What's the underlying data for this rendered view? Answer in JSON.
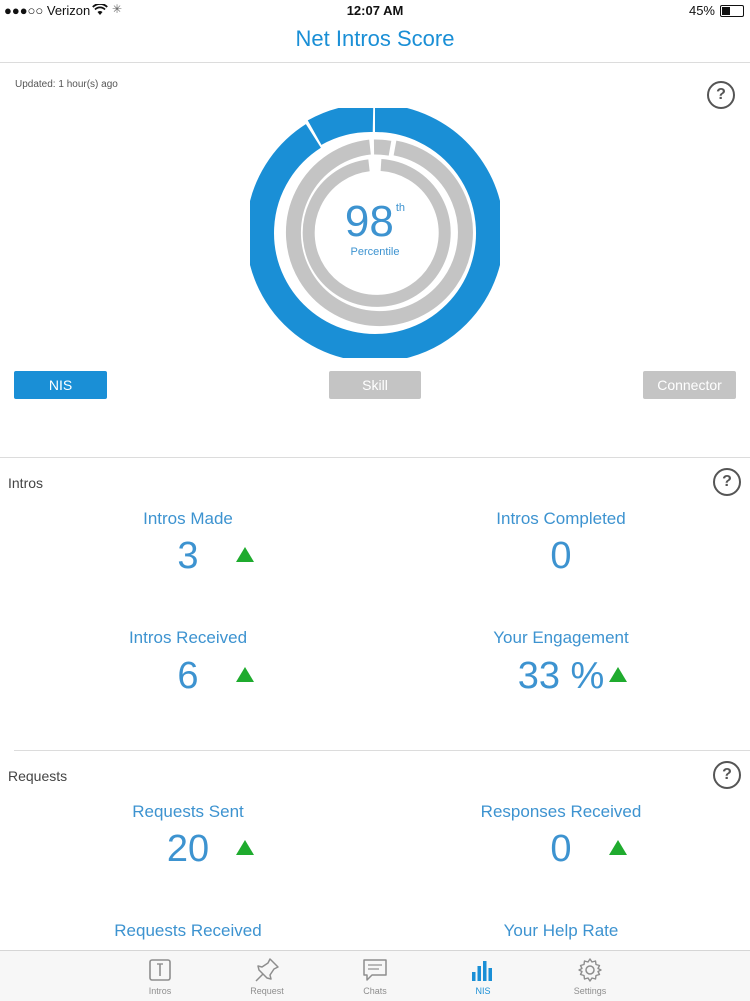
{
  "status_bar": {
    "carrier": "●●●○○ Verizon",
    "time": "12:07 AM",
    "battery": "45%",
    "battery_level": 0.45
  },
  "header": {
    "title": "Net Intros Score"
  },
  "score": {
    "updated": "Updated: 1 hour(s) ago",
    "help": "?",
    "percentile_value": "98",
    "percentile_suffix": "th",
    "percentile_label": "Percentile",
    "colors": {
      "nis": "#1a8fd6",
      "skill": "#c4c4c4",
      "connector": "#c4c4c4"
    }
  },
  "score_tabs": [
    {
      "label": "NIS",
      "active": true
    },
    {
      "label": "Skill",
      "active": false
    },
    {
      "label": "Connector",
      "active": false
    }
  ],
  "sections": [
    {
      "title": "Intros",
      "help": "?",
      "stats": [
        {
          "label": "Intros Made",
          "value": "3",
          "trend": "up"
        },
        {
          "label": "Intros Completed",
          "value": "0",
          "trend": "none"
        },
        {
          "label": "Intros Received",
          "value": "6",
          "trend": "up"
        },
        {
          "label": "Your Engagement",
          "value": "33 %",
          "trend": "up"
        }
      ]
    },
    {
      "title": "Requests",
      "help": "?",
      "stats": [
        {
          "label": "Requests Sent",
          "value": "20",
          "trend": "up"
        },
        {
          "label": "Responses Received",
          "value": "0",
          "trend": "up"
        },
        {
          "label": "Requests Received",
          "value": "",
          "trend": "none"
        },
        {
          "label": "Your Help Rate",
          "value": "",
          "trend": "none"
        }
      ]
    }
  ],
  "tab_bar": [
    {
      "label": "Intros",
      "icon": "intros-icon",
      "active": false
    },
    {
      "label": "Request",
      "icon": "pin-icon",
      "active": false
    },
    {
      "label": "Chats",
      "icon": "chat-icon",
      "active": false
    },
    {
      "label": "NIS",
      "icon": "bar-chart-icon",
      "active": true
    },
    {
      "label": "Settings",
      "icon": "gear-icon",
      "active": false
    }
  ]
}
